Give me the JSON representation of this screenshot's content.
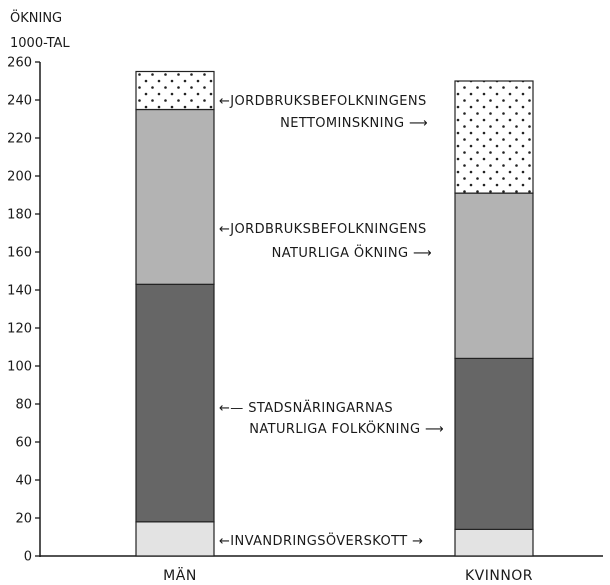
{
  "chart_data": {
    "type": "bar",
    "stacked": true,
    "ylabel_lines": [
      "ÖKNING",
      "1000-TAL"
    ],
    "ylim": [
      0,
      260
    ],
    "yticks": [
      0,
      20,
      40,
      60,
      80,
      100,
      120,
      140,
      160,
      180,
      200,
      220,
      240,
      260
    ],
    "categories": [
      "MÄN",
      "KVINNOR"
    ],
    "series": [
      {
        "key": "invandring",
        "values": [
          18,
          14
        ],
        "color": "#e3e3e3",
        "pattern": "light"
      },
      {
        "key": "stadsnaringar",
        "values": [
          125,
          90
        ],
        "color": "#666666",
        "pattern": "solid"
      },
      {
        "key": "jordbruk_naturlig",
        "values": [
          92,
          87
        ],
        "color": "#b3b3b3",
        "pattern": "solid"
      },
      {
        "key": "jordbruk_netto",
        "values": [
          20,
          59
        ],
        "color": "#ffffff",
        "pattern": "dots"
      }
    ],
    "annotations": [
      {
        "key": "jordbruk_netto",
        "lines": [
          "←JORDBRUKSBEFOLKNINGENS",
          "NETTOMINSKNING ⟶"
        ]
      },
      {
        "key": "jordbruk_naturlig",
        "lines": [
          "←JORDBRUKSBEFOLKNINGENS",
          "NATURLIGA ÖKNING ⟶"
        ]
      },
      {
        "key": "stadsnaringar",
        "lines": [
          "←— STADSNÄRINGARNAS",
          "NATURLIGA FOLKÖKNING ⟶"
        ]
      },
      {
        "key": "invandring",
        "lines": [
          "←INVANDRINGSÖVERSKOTT →"
        ]
      }
    ]
  }
}
